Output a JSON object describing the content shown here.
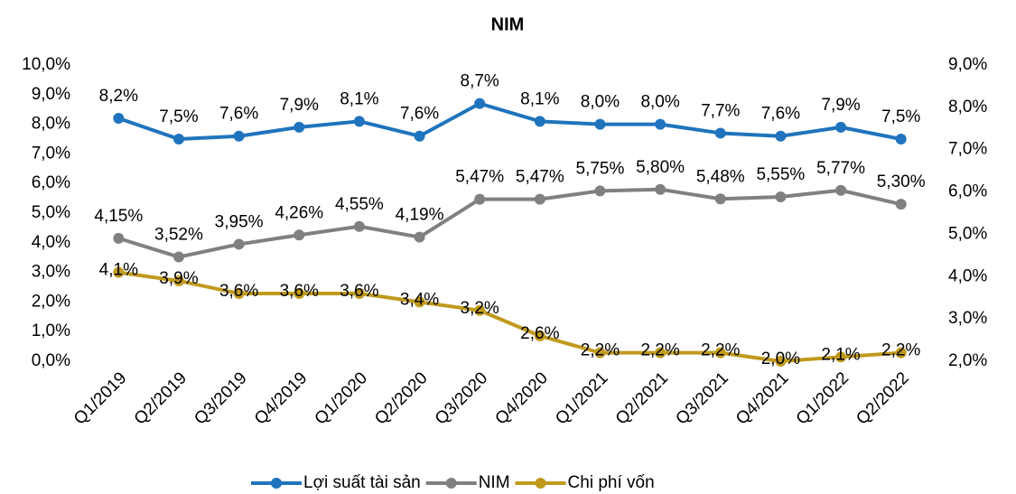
{
  "chart_data": {
    "type": "line",
    "title": "NIM",
    "categories": [
      "Q1/2019",
      "Q2/2019",
      "Q3/2019",
      "Q4/2019",
      "Q1/2020",
      "Q2/2020",
      "Q3/2020",
      "Q4/2020",
      "Q1/2021",
      "Q2/2021",
      "Q3/2021",
      "Q4/2021",
      "Q1/2022",
      "Q2/2022"
    ],
    "series": [
      {
        "name": "Lợi suất tài sản",
        "color": "#1f74bd",
        "axis": "y",
        "values": [
          8.2,
          7.5,
          7.6,
          7.9,
          8.1,
          7.6,
          8.7,
          8.1,
          8.0,
          8.0,
          7.7,
          7.6,
          7.9,
          7.5
        ],
        "value_labels": [
          "8,2%",
          "7,5%",
          "7,6%",
          "7,9%",
          "8,1%",
          "7,6%",
          "8,7%",
          "8,1%",
          "8,0%",
          "8,0%",
          "7,7%",
          "7,6%",
          "7,9%",
          "7,5%"
        ]
      },
      {
        "name": "NIM",
        "color": "#808080",
        "axis": "y",
        "values": [
          4.15,
          3.52,
          3.95,
          4.26,
          4.55,
          4.19,
          5.47,
          5.47,
          5.75,
          5.8,
          5.48,
          5.55,
          5.77,
          5.3
        ],
        "value_labels": [
          "4,15%",
          "3,52%",
          "3,95%",
          "4,26%",
          "4,55%",
          "4,19%",
          "5,47%",
          "5,47%",
          "5,75%",
          "5,80%",
          "5,48%",
          "5,55%",
          "5,77%",
          "5,30%"
        ]
      },
      {
        "name": "Chi phí vốn",
        "color": "#c09a1c",
        "axis": "y2",
        "values": [
          4.1,
          3.9,
          3.6,
          3.6,
          3.6,
          3.4,
          3.2,
          2.6,
          2.2,
          2.2,
          2.2,
          2.0,
          2.1,
          2.2
        ],
        "value_labels": [
          "4,1%",
          "3,9%",
          "3,6%",
          "3,6%",
          "3,6%",
          "3,4%",
          "3,2%",
          "2,6%",
          "2,2%",
          "2,2%",
          "2,2%",
          "2,0%",
          "2,1%",
          "2,2%"
        ]
      }
    ],
    "ylim": [
      0,
      10
    ],
    "yticks": [
      {
        "value": 0,
        "label": "0,0%"
      },
      {
        "value": 1,
        "label": "1,0%"
      },
      {
        "value": 2,
        "label": "2,0%"
      },
      {
        "value": 3,
        "label": "3,0%"
      },
      {
        "value": 4,
        "label": "4,0%"
      },
      {
        "value": 5,
        "label": "5,0%"
      },
      {
        "value": 6,
        "label": "6,0%"
      },
      {
        "value": 7,
        "label": "7,0%"
      },
      {
        "value": 8,
        "label": "8,0%"
      },
      {
        "value": 9,
        "label": "9,0%"
      },
      {
        "value": 10,
        "label": "10,0%"
      }
    ],
    "y2lim": [
      2,
      9
    ],
    "y2ticks": [
      {
        "value": 2,
        "label": "2,0%"
      },
      {
        "value": 3,
        "label": "3,0%"
      },
      {
        "value": 4,
        "label": "4,0%"
      },
      {
        "value": 5,
        "label": "5,0%"
      },
      {
        "value": 6,
        "label": "6,0%"
      },
      {
        "value": 7,
        "label": "7,0%"
      },
      {
        "value": 8,
        "label": "8,0%"
      },
      {
        "value": 9,
        "label": "9,0%"
      }
    ],
    "legend": "bottom"
  }
}
